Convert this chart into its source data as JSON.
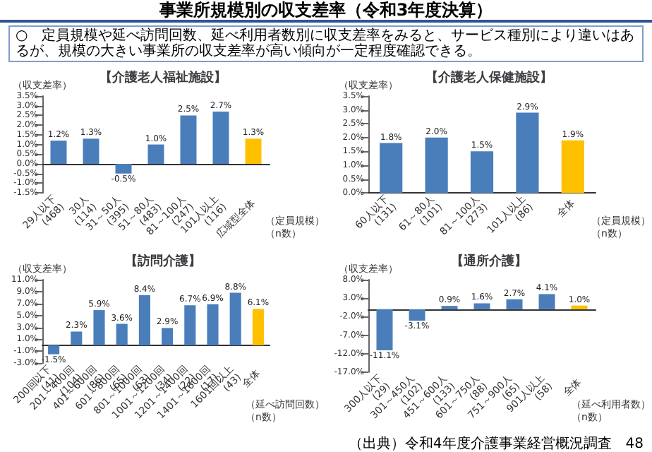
{
  "chart_data": [
    {
      "type": "other",
      "title": "事業所規模別の収支差率（令和3年度決算）",
      "annotations": [
        "○　定員規模や延べ訪問回数、延べ利用者数別に収支差率をみると、サービス種別により違いはあるが、規模の大きい事業所の収支差率が高い傾向が一定程度確認できる。",
        "（出典）令和4年度介護事業経営概況調査",
        "48"
      ]
    },
    {
      "type": "bar",
      "title": "【介護老人福祉施設】",
      "ylabel": "（収支差率）",
      "xlabel": "（定員規模）（n数）",
      "categories": [
        "29人以下\n(468)",
        "30人\n(114)",
        "31～50人\n(395)",
        "51～80人\n(483)",
        "81～100人\n(247)",
        "101人以上\n(116)",
        "広域型全体"
      ],
      "values": [
        1.2,
        1.3,
        -0.5,
        1.0,
        2.5,
        2.7,
        1.3
      ],
      "value_labels": [
        "1.2%",
        "1.3%",
        "-0.5%",
        "1.0%",
        "2.5%",
        "2.7%",
        "1.3%"
      ],
      "colors": [
        "#4a7ebb",
        "#4a7ebb",
        "#4a7ebb",
        "#4a7ebb",
        "#4a7ebb",
        "#4a7ebb",
        "#ffc000"
      ],
      "ylim": [
        -1.5,
        3.5
      ],
      "yticks": [
        {
          "value": -1.5,
          "label": "-1.5%"
        },
        {
          "value": -1,
          "label": "-1.0%"
        },
        {
          "value": -0.5,
          "label": "-0.5%"
        },
        {
          "value": 0,
          "label": "0.0%"
        },
        {
          "value": 0.5,
          "label": "0.5%"
        },
        {
          "value": 1,
          "label": "1.0%"
        },
        {
          "value": 1.5,
          "label": "1.5%"
        },
        {
          "value": 2,
          "label": "2.0%"
        },
        {
          "value": 2.5,
          "label": "2.5%"
        },
        {
          "value": 3,
          "label": "3.0%"
        },
        {
          "value": 3.5,
          "label": "3.5%"
        }
      ]
    },
    {
      "type": "bar",
      "title": "【介護老人保健施設】",
      "ylabel": "（収支差率）",
      "xlabel": "（定員規模）（n数）",
      "categories": [
        "60人以下\n(131)",
        "61～80人\n(101)",
        "81～100人\n(273)",
        "101人以上\n(86)",
        "全体"
      ],
      "values": [
        1.8,
        2.0,
        1.5,
        2.9,
        1.9
      ],
      "value_labels": [
        "1.8%",
        "2.0%",
        "1.5%",
        "2.9%",
        "1.9%"
      ],
      "colors": [
        "#4a7ebb",
        "#4a7ebb",
        "#4a7ebb",
        "#4a7ebb",
        "#ffc000"
      ],
      "ylim": [
        0,
        3.5
      ],
      "yticks": [
        {
          "value": 0,
          "label": "0.0%"
        },
        {
          "value": 0.5,
          "label": "0.5%"
        },
        {
          "value": 1,
          "label": "1.0%"
        },
        {
          "value": 1.5,
          "label": "1.5%"
        },
        {
          "value": 2,
          "label": "2.0%"
        },
        {
          "value": 2.5,
          "label": "2.5%"
        },
        {
          "value": 3,
          "label": "3.0%"
        },
        {
          "value": 3.5,
          "label": "3.5%"
        }
      ]
    },
    {
      "type": "bar",
      "title": "【訪問介護】",
      "ylabel": "（収支差率）",
      "xlabel": "（延べ訪問回数）（n数）",
      "categories": [
        "200回以下\n(41)",
        "201～400回\n(104)",
        "401～600回\n(86)",
        "601～800回\n(65)",
        "801～1000回\n(63)",
        "1001～1200回\n(34)",
        "1201～1400回\n(22)",
        "1401～1600回\n(17)",
        "1601回以上\n(43)",
        "全体"
      ],
      "values": [
        -1.5,
        2.3,
        5.9,
        3.6,
        8.4,
        2.9,
        6.7,
        6.9,
        8.8,
        6.1
      ],
      "value_labels": [
        "-1.5%",
        "2.3%",
        "5.9%",
        "3.6%",
        "8.4%",
        "2.9%",
        "6.7%",
        "6.9%",
        "8.8%",
        "6.1%"
      ],
      "colors": [
        "#4a7ebb",
        "#4a7ebb",
        "#4a7ebb",
        "#4a7ebb",
        "#4a7ebb",
        "#4a7ebb",
        "#4a7ebb",
        "#4a7ebb",
        "#4a7ebb",
        "#ffc000"
      ],
      "ylim": [
        -3,
        11
      ],
      "yticks": [
        {
          "value": -3,
          "label": "-3.0%"
        },
        {
          "value": -1,
          "label": "-1.0%"
        },
        {
          "value": 1,
          "label": "1.0%"
        },
        {
          "value": 3,
          "label": "3.0%"
        },
        {
          "value": 5,
          "label": "5.0%"
        },
        {
          "value": 7,
          "label": "7.0%"
        },
        {
          "value": 9,
          "label": "9.0%"
        },
        {
          "value": 11,
          "label": "11.0%"
        }
      ]
    },
    {
      "type": "bar",
      "title": "【通所介護】",
      "ylabel": "（収支差率）",
      "xlabel": "（延べ利用者数）（n数）",
      "categories": [
        "300人以下\n(29)",
        "301～450人\n(102)",
        "451～600人\n(133)",
        "601～750人\n(88)",
        "751～900人\n(65)",
        "901人以上\n(58)",
        "全体"
      ],
      "values": [
        -11.1,
        -3.1,
        0.9,
        1.6,
        2.7,
        4.1,
        1.0
      ],
      "value_labels": [
        "-11.1%",
        "-3.1%",
        "0.9%",
        "1.6%",
        "2.7%",
        "4.1%",
        "1.0%"
      ],
      "colors": [
        "#4a7ebb",
        "#4a7ebb",
        "#4a7ebb",
        "#4a7ebb",
        "#4a7ebb",
        "#4a7ebb",
        "#ffc000"
      ],
      "ylim": [
        -17,
        8
      ],
      "yticks": [
        {
          "value": -17,
          "label": "-17.0%"
        },
        {
          "value": -12,
          "label": "-12.0%"
        },
        {
          "value": -7,
          "label": "-7.0%"
        },
        {
          "value": -2,
          "label": "-2.0%"
        },
        {
          "value": 3,
          "label": "3.0%"
        },
        {
          "value": 8,
          "label": "8.0%"
        }
      ]
    }
  ]
}
